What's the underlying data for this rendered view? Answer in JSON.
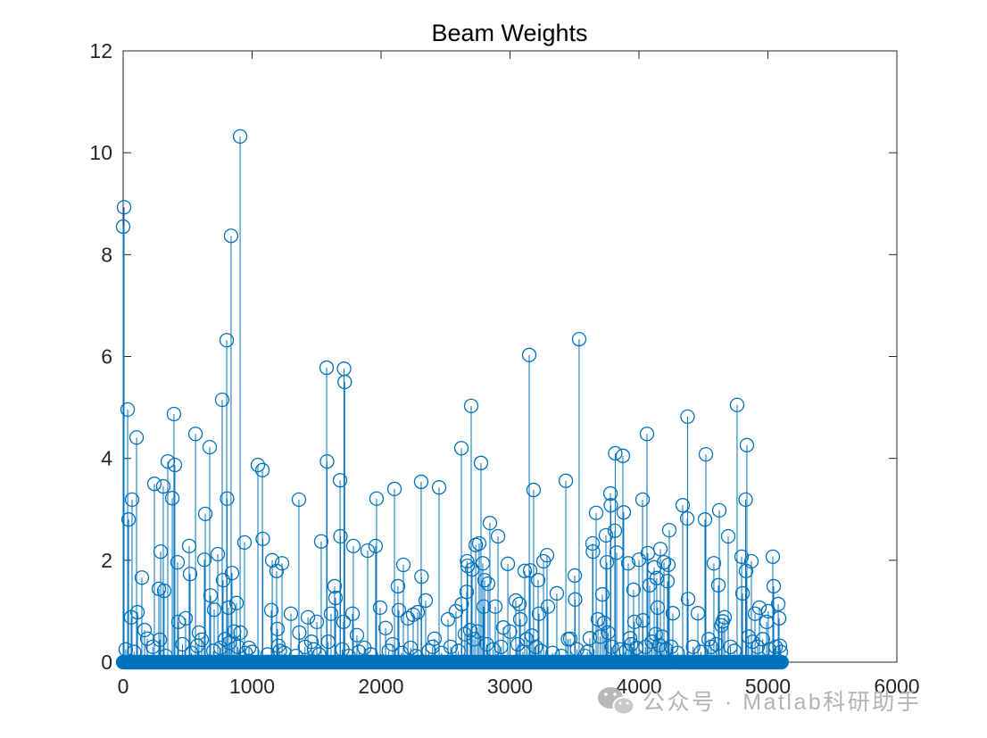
{
  "chart_data": {
    "type": "scatter",
    "stem": true,
    "marker": "circle",
    "marker_filled": false,
    "color": "#0072BD",
    "title": "Beam Weights",
    "xlabel": "",
    "ylabel": "",
    "xlim": [
      0,
      6000
    ],
    "ylim": [
      0,
      12
    ],
    "xticks": [
      0,
      1000,
      2000,
      3000,
      4000,
      5000,
      6000
    ],
    "xticklabels": [
      "0",
      "1000",
      "2000",
      "3000",
      "4000",
      "5000",
      "6000"
    ],
    "yticks": [
      0,
      2,
      4,
      6,
      8,
      10,
      12
    ],
    "yticklabels": [
      "0",
      "2",
      "4",
      "6",
      "8",
      "10",
      "12"
    ],
    "grid": false,
    "box": true,
    "legend": "none",
    "dense_zero_values": {
      "x_range": [
        0,
        5110
      ],
      "value": 0
    },
    "points": [
      [
        0,
        8.55
      ],
      [
        7,
        8.93
      ],
      [
        35,
        4.96
      ],
      [
        42,
        2.8
      ],
      [
        62,
        0.88
      ],
      [
        69,
        3.19
      ],
      [
        104,
        4.41
      ],
      [
        111,
        0.98
      ],
      [
        145,
        1.66
      ],
      [
        166,
        0.63
      ],
      [
        187,
        0.46
      ],
      [
        242,
        3.5
      ],
      [
        277,
        1.44
      ],
      [
        284,
        0.44
      ],
      [
        291,
        2.17
      ],
      [
        311,
        3.45
      ],
      [
        318,
        1.4
      ],
      [
        346,
        3.94
      ],
      [
        381,
        3.22
      ],
      [
        394,
        4.87
      ],
      [
        401,
        3.87
      ],
      [
        422,
        1.96
      ],
      [
        429,
        0.79
      ],
      [
        484,
        0.86
      ],
      [
        512,
        2.28
      ],
      [
        519,
        1.73
      ],
      [
        561,
        4.48
      ],
      [
        588,
        0.58
      ],
      [
        609,
        0.44
      ],
      [
        630,
        2.01
      ],
      [
        637,
        2.91
      ],
      [
        671,
        4.22
      ],
      [
        678,
        1.31
      ],
      [
        706,
        1.03
      ],
      [
        734,
        2.12
      ],
      [
        768,
        5.15
      ],
      [
        775,
        1.61
      ],
      [
        803,
        6.32
      ],
      [
        806,
        3.21
      ],
      [
        817,
        1.07
      ],
      [
        837,
        8.37
      ],
      [
        844,
        1.75
      ],
      [
        879,
        1.16
      ],
      [
        907,
        10.32
      ],
      [
        910,
        0.58
      ],
      [
        941,
        2.35
      ],
      [
        976,
        0.28
      ],
      [
        1045,
        3.87
      ],
      [
        1080,
        3.77
      ],
      [
        1083,
        2.42
      ],
      [
        1149,
        1.02
      ],
      [
        1156,
        2.0
      ],
      [
        1190,
        1.79
      ],
      [
        1197,
        0.65
      ],
      [
        1204,
        0.32
      ],
      [
        1232,
        1.94
      ],
      [
        1301,
        0.95
      ],
      [
        1363,
        3.19
      ],
      [
        1366,
        0.58
      ],
      [
        1433,
        0.88
      ],
      [
        1460,
        0.4
      ],
      [
        1502,
        0.79
      ],
      [
        1536,
        2.37
      ],
      [
        1578,
        5.78
      ],
      [
        1581,
        3.94
      ],
      [
        1612,
        0.95
      ],
      [
        1640,
        1.49
      ],
      [
        1647,
        1.26
      ],
      [
        1682,
        3.57
      ],
      [
        1685,
        2.47
      ],
      [
        1709,
        0.79
      ],
      [
        1713,
        5.76
      ],
      [
        1718,
        5.5
      ],
      [
        1779,
        0.95
      ],
      [
        1785,
        2.28
      ],
      [
        1813,
        0.53
      ],
      [
        1896,
        2.19
      ],
      [
        1958,
        2.28
      ],
      [
        1965,
        3.21
      ],
      [
        1993,
        1.07
      ],
      [
        2035,
        0.67
      ],
      [
        2104,
        3.4
      ],
      [
        2131,
        1.49
      ],
      [
        2138,
        1.02
      ],
      [
        2173,
        1.91
      ],
      [
        2208,
        0.86
      ],
      [
        2249,
        0.93
      ],
      [
        2284,
        0.98
      ],
      [
        2311,
        3.54
      ],
      [
        2314,
        1.68
      ],
      [
        2346,
        1.21
      ],
      [
        2415,
        0.46
      ],
      [
        2450,
        3.43
      ],
      [
        2519,
        0.84
      ],
      [
        2581,
        1.0
      ],
      [
        2623,
        4.2
      ],
      [
        2626,
        1.14
      ],
      [
        2664,
        1.38
      ],
      [
        2667,
        1.98
      ],
      [
        2671,
        1.89
      ],
      [
        2692,
        0.63
      ],
      [
        2699,
        5.03
      ],
      [
        2706,
        1.82
      ],
      [
        2734,
        2.3
      ],
      [
        2761,
        2.33
      ],
      [
        2775,
        3.91
      ],
      [
        2789,
        1.94
      ],
      [
        2796,
        1.09
      ],
      [
        2803,
        1.61
      ],
      [
        2830,
        1.54
      ],
      [
        2844,
        2.73
      ],
      [
        2886,
        1.09
      ],
      [
        2907,
        2.47
      ],
      [
        2948,
        0.68
      ],
      [
        2983,
        1.93
      ],
      [
        3045,
        1.21
      ],
      [
        3073,
        1.14
      ],
      [
        3080,
        0.84
      ],
      [
        3114,
        1.79
      ],
      [
        3149,
        6.03
      ],
      [
        3156,
        1.8
      ],
      [
        3183,
        3.38
      ],
      [
        3218,
        1.61
      ],
      [
        3225,
        0.95
      ],
      [
        3260,
        1.98
      ],
      [
        3287,
        2.1
      ],
      [
        3294,
        1.09
      ],
      [
        3363,
        1.35
      ],
      [
        3433,
        3.56
      ],
      [
        3467,
        0.46
      ],
      [
        3502,
        1.7
      ],
      [
        3505,
        1.23
      ],
      [
        3536,
        6.34
      ],
      [
        3619,
        0.47
      ],
      [
        3640,
        2.33
      ],
      [
        3643,
        2.17
      ],
      [
        3668,
        2.93
      ],
      [
        3682,
        0.84
      ],
      [
        3716,
        1.33
      ],
      [
        3730,
        0.77
      ],
      [
        3744,
        2.49
      ],
      [
        3751,
        1.96
      ],
      [
        3779,
        3.31
      ],
      [
        3782,
        3.08
      ],
      [
        3813,
        2.58
      ],
      [
        3816,
        4.1
      ],
      [
        3827,
        2.15
      ],
      [
        3875,
        4.05
      ],
      [
        3882,
        2.94
      ],
      [
        3917,
        1.94
      ],
      [
        3931,
        0.47
      ],
      [
        3958,
        1.42
      ],
      [
        3965,
        0.79
      ],
      [
        4000,
        2.01
      ],
      [
        4028,
        3.19
      ],
      [
        4031,
        0.82
      ],
      [
        4062,
        4.48
      ],
      [
        4069,
        2.14
      ],
      [
        4083,
        1.51
      ],
      [
        4118,
        1.86
      ],
      [
        4138,
        1.65
      ],
      [
        4145,
        1.07
      ],
      [
        4166,
        2.22
      ],
      [
        4194,
        1.96
      ],
      [
        4221,
        1.59
      ],
      [
        4228,
        1.91
      ],
      [
        4235,
        2.59
      ],
      [
        4263,
        0.96
      ],
      [
        4339,
        3.08
      ],
      [
        4374,
        2.82
      ],
      [
        4377,
        4.82
      ],
      [
        4381,
        1.24
      ],
      [
        4457,
        0.96
      ],
      [
        4512,
        2.8
      ],
      [
        4519,
        4.08
      ],
      [
        4581,
        1.94
      ],
      [
        4616,
        1.51
      ],
      [
        4623,
        2.98
      ],
      [
        4664,
        0.88
      ],
      [
        4692,
        2.47
      ],
      [
        4761,
        5.05
      ],
      [
        4796,
        2.07
      ],
      [
        4803,
        1.35
      ],
      [
        4827,
        3.19
      ],
      [
        4830,
        1.79
      ],
      [
        4837,
        4.26
      ],
      [
        4872,
        1.98
      ],
      [
        4900,
        0.95
      ],
      [
        4934,
        1.07
      ],
      [
        4990,
        0.79
      ],
      [
        5003,
        1.0
      ],
      [
        5038,
        2.07
      ],
      [
        5045,
        1.49
      ],
      [
        5080,
        1.14
      ],
      [
        5087,
        0.86
      ],
      [
        5093,
        0.32
      ],
      [
        20,
        0.25
      ],
      [
        85,
        0.2
      ],
      [
        230,
        0.3
      ],
      [
        330,
        0.12
      ],
      [
        460,
        0.35
      ],
      [
        530,
        0.18
      ],
      [
        575,
        0.32
      ],
      [
        700,
        0.22
      ],
      [
        755,
        0.28
      ],
      [
        790,
        0.45
      ],
      [
        825,
        0.38
      ],
      [
        860,
        0.6
      ],
      [
        890,
        0.3
      ],
      [
        950,
        0.18
      ],
      [
        1000,
        0.2
      ],
      [
        1120,
        0.15
      ],
      [
        1215,
        0.22
      ],
      [
        1250,
        0.18
      ],
      [
        1340,
        0.12
      ],
      [
        1410,
        0.3
      ],
      [
        1480,
        0.25
      ],
      [
        1520,
        0.15
      ],
      [
        1590,
        0.4
      ],
      [
        1700,
        0.25
      ],
      [
        1750,
        0.12
      ],
      [
        1830,
        0.2
      ],
      [
        1870,
        0.28
      ],
      [
        1920,
        0.15
      ],
      [
        2060,
        0.22
      ],
      [
        2090,
        0.35
      ],
      [
        2160,
        0.18
      ],
      [
        2230,
        0.28
      ],
      [
        2270,
        0.12
      ],
      [
        2370,
        0.22
      ],
      [
        2400,
        0.3
      ],
      [
        2470,
        0.18
      ],
      [
        2540,
        0.3
      ],
      [
        2600,
        0.22
      ],
      [
        2650,
        0.55
      ],
      [
        2720,
        0.45
      ],
      [
        2750,
        0.6
      ],
      [
        2820,
        0.35
      ],
      [
        2870,
        0.25
      ],
      [
        2930,
        0.3
      ],
      [
        3000,
        0.6
      ],
      [
        3060,
        0.35
      ],
      [
        3100,
        0.2
      ],
      [
        3130,
        0.45
      ],
      [
        3170,
        0.52
      ],
      [
        3200,
        0.3
      ],
      [
        3240,
        0.22
      ],
      [
        3330,
        0.18
      ],
      [
        3400,
        0.12
      ],
      [
        3450,
        0.45
      ],
      [
        3520,
        0.25
      ],
      [
        3580,
        0.12
      ],
      [
        3600,
        0.2
      ],
      [
        3700,
        0.5
      ],
      [
        3760,
        0.58
      ],
      [
        3790,
        0.3
      ],
      [
        3850,
        0.25
      ],
      [
        3900,
        0.22
      ],
      [
        3940,
        0.35
      ],
      [
        3980,
        0.28
      ],
      [
        4050,
        0.3
      ],
      [
        4100,
        0.4
      ],
      [
        4130,
        0.55
      ],
      [
        4160,
        0.33
      ],
      [
        4180,
        0.5
      ],
      [
        4210,
        0.25
      ],
      [
        4250,
        0.3
      ],
      [
        4300,
        0.18
      ],
      [
        4420,
        0.3
      ],
      [
        4480,
        0.2
      ],
      [
        4540,
        0.45
      ],
      [
        4560,
        0.3
      ],
      [
        4600,
        0.35
      ],
      [
        4640,
        0.72
      ],
      [
        4650,
        0.8
      ],
      [
        4710,
        0.3
      ],
      [
        4740,
        0.22
      ],
      [
        4850,
        0.5
      ],
      [
        4880,
        0.4
      ],
      [
        4920,
        0.3
      ],
      [
        4960,
        0.45
      ],
      [
        5010,
        0.25
      ],
      [
        5060,
        0.3
      ],
      [
        5100,
        0.2
      ]
    ]
  },
  "colors": {
    "series": "#0072BD",
    "axes": "#262626",
    "watermark": "#b3b3b3"
  },
  "watermark": {
    "icon": "wechat-icon",
    "text": "公众号 · Matlab科研助手"
  }
}
